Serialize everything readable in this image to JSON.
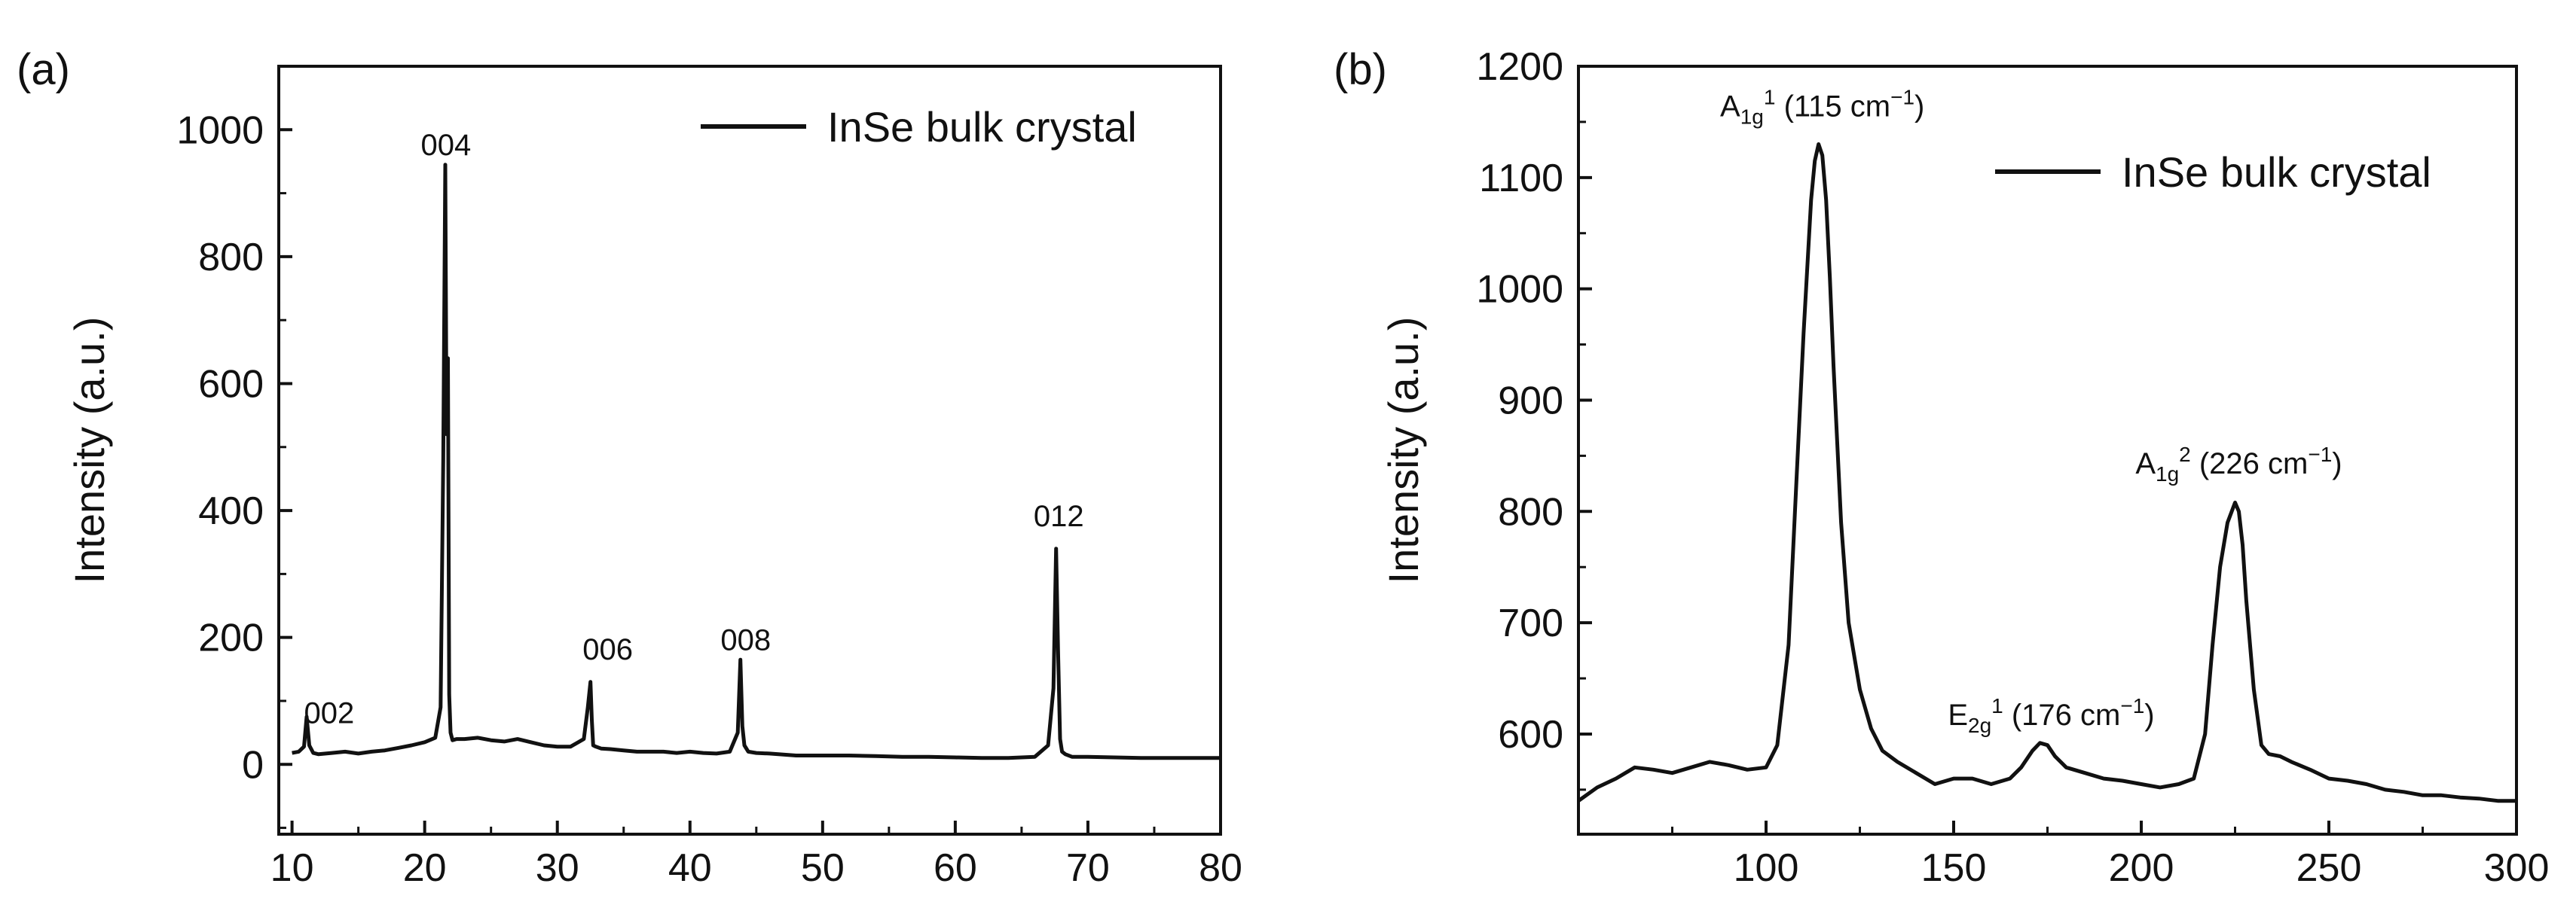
{
  "chart_data": [
    {
      "panel": "(a)",
      "type": "line",
      "title": "",
      "xlabel": "",
      "ylabel": "Intensity (a.u.)",
      "xlim": [
        9,
        80
      ],
      "ylim": [
        -110,
        1100
      ],
      "xticks": [
        10,
        20,
        30,
        40,
        50,
        60,
        70,
        80
      ],
      "yticks": [
        0,
        200,
        400,
        600,
        800,
        1000
      ],
      "legend": {
        "label": "InSe bulk crystal",
        "position": "top-right"
      },
      "series": [
        {
          "name": "InSe bulk crystal",
          "x": [
            10,
            10.5,
            10.9,
            11.1,
            11.3,
            11.6,
            12,
            13,
            14,
            15,
            16,
            17,
            18,
            19,
            20,
            20.8,
            21.2,
            21.4,
            21.55,
            21.65,
            21.75,
            21.85,
            21.95,
            22.1,
            22.4,
            23,
            24,
            25,
            26,
            27,
            28,
            29,
            30,
            31,
            32,
            32.3,
            32.5,
            32.6,
            32.7,
            32.9,
            33.3,
            34,
            35,
            36,
            37,
            38,
            39,
            40,
            41,
            42,
            43,
            43.6,
            43.8,
            43.95,
            44.1,
            44.4,
            45,
            46,
            48,
            50,
            52,
            54,
            56,
            58,
            60,
            62,
            64,
            66,
            67,
            67.4,
            67.6,
            67.75,
            67.9,
            68.05,
            68.3,
            68.8,
            70,
            72,
            74,
            76,
            78,
            80
          ],
          "y": [
            18,
            20,
            28,
            75,
            30,
            18,
            16,
            18,
            20,
            17,
            20,
            22,
            26,
            30,
            35,
            42,
            90,
            480,
            945,
            520,
            640,
            110,
            50,
            38,
            40,
            40,
            42,
            38,
            36,
            40,
            35,
            30,
            28,
            28,
            40,
            90,
            130,
            70,
            30,
            28,
            25,
            24,
            22,
            20,
            20,
            20,
            18,
            20,
            18,
            17,
            20,
            50,
            165,
            60,
            30,
            20,
            18,
            17,
            14,
            14,
            14,
            13,
            12,
            12,
            11,
            10,
            10,
            12,
            30,
            120,
            340,
            180,
            40,
            20,
            16,
            12,
            12,
            11,
            10,
            10,
            10,
            10
          ]
        }
      ],
      "annotations": [
        {
          "text": "002",
          "x": 12.8,
          "y": 65
        },
        {
          "text": "004",
          "x": 21.6,
          "y": 960
        },
        {
          "text": "006",
          "x": 33.8,
          "y": 165
        },
        {
          "text": "008",
          "x": 44.2,
          "y": 180
        },
        {
          "text": "012",
          "x": 67.8,
          "y": 375
        }
      ]
    },
    {
      "panel": "(b)",
      "type": "line",
      "title": "",
      "xlabel": "",
      "ylabel": "Intensity (a.u.)",
      "xlim": [
        50,
        300
      ],
      "ylim": [
        510,
        1200
      ],
      "xticks": [
        100,
        150,
        200,
        250,
        300
      ],
      "yticks": [
        600,
        700,
        800,
        900,
        1000,
        1100,
        1200
      ],
      "legend": {
        "label": "InSe bulk crystal",
        "position": "upper-right"
      },
      "series": [
        {
          "name": "InSe bulk crystal",
          "x": [
            50,
            55,
            60,
            65,
            70,
            75,
            80,
            85,
            90,
            95,
            100,
            103,
            106,
            108,
            110,
            112,
            113,
            114,
            115,
            116,
            117,
            118,
            120,
            122,
            125,
            128,
            131,
            135,
            140,
            145,
            150,
            155,
            160,
            165,
            168,
            171,
            173,
            175,
            177,
            180,
            185,
            190,
            195,
            200,
            205,
            210,
            214,
            217,
            219,
            221,
            223,
            225,
            226,
            227,
            228,
            230,
            232,
            234,
            237,
            240,
            245,
            250,
            255,
            260,
            265,
            270,
            275,
            280,
            285,
            290,
            295,
            300
          ],
          "y": [
            540,
            552,
            560,
            570,
            568,
            565,
            570,
            575,
            572,
            568,
            570,
            590,
            680,
            820,
            960,
            1080,
            1115,
            1130,
            1120,
            1080,
            1010,
            930,
            790,
            700,
            640,
            605,
            585,
            575,
            565,
            555,
            560,
            560,
            555,
            560,
            570,
            585,
            592,
            590,
            580,
            570,
            565,
            560,
            558,
            555,
            552,
            555,
            560,
            600,
            680,
            750,
            790,
            808,
            800,
            770,
            720,
            640,
            590,
            582,
            580,
            575,
            568,
            560,
            558,
            555,
            550,
            548,
            545,
            545,
            543,
            542,
            540,
            540
          ]
        }
      ],
      "annotations": [
        {
          "base": "A",
          "sub": "1g",
          "sup": "1",
          "text": " (115 cm",
          "unit_sup": "−1",
          "close": ")",
          "x": 115,
          "y": 1155
        },
        {
          "base": "E",
          "sub": "2g",
          "sup": "1",
          "text": " (176 cm",
          "unit_sup": "−1",
          "close": ")",
          "x": 176,
          "y": 608
        },
        {
          "base": "A",
          "sub": "1g",
          "sup": "2",
          "text": " (226 cm",
          "unit_sup": "−1",
          "close": ")",
          "x": 226,
          "y": 834
        }
      ]
    }
  ]
}
